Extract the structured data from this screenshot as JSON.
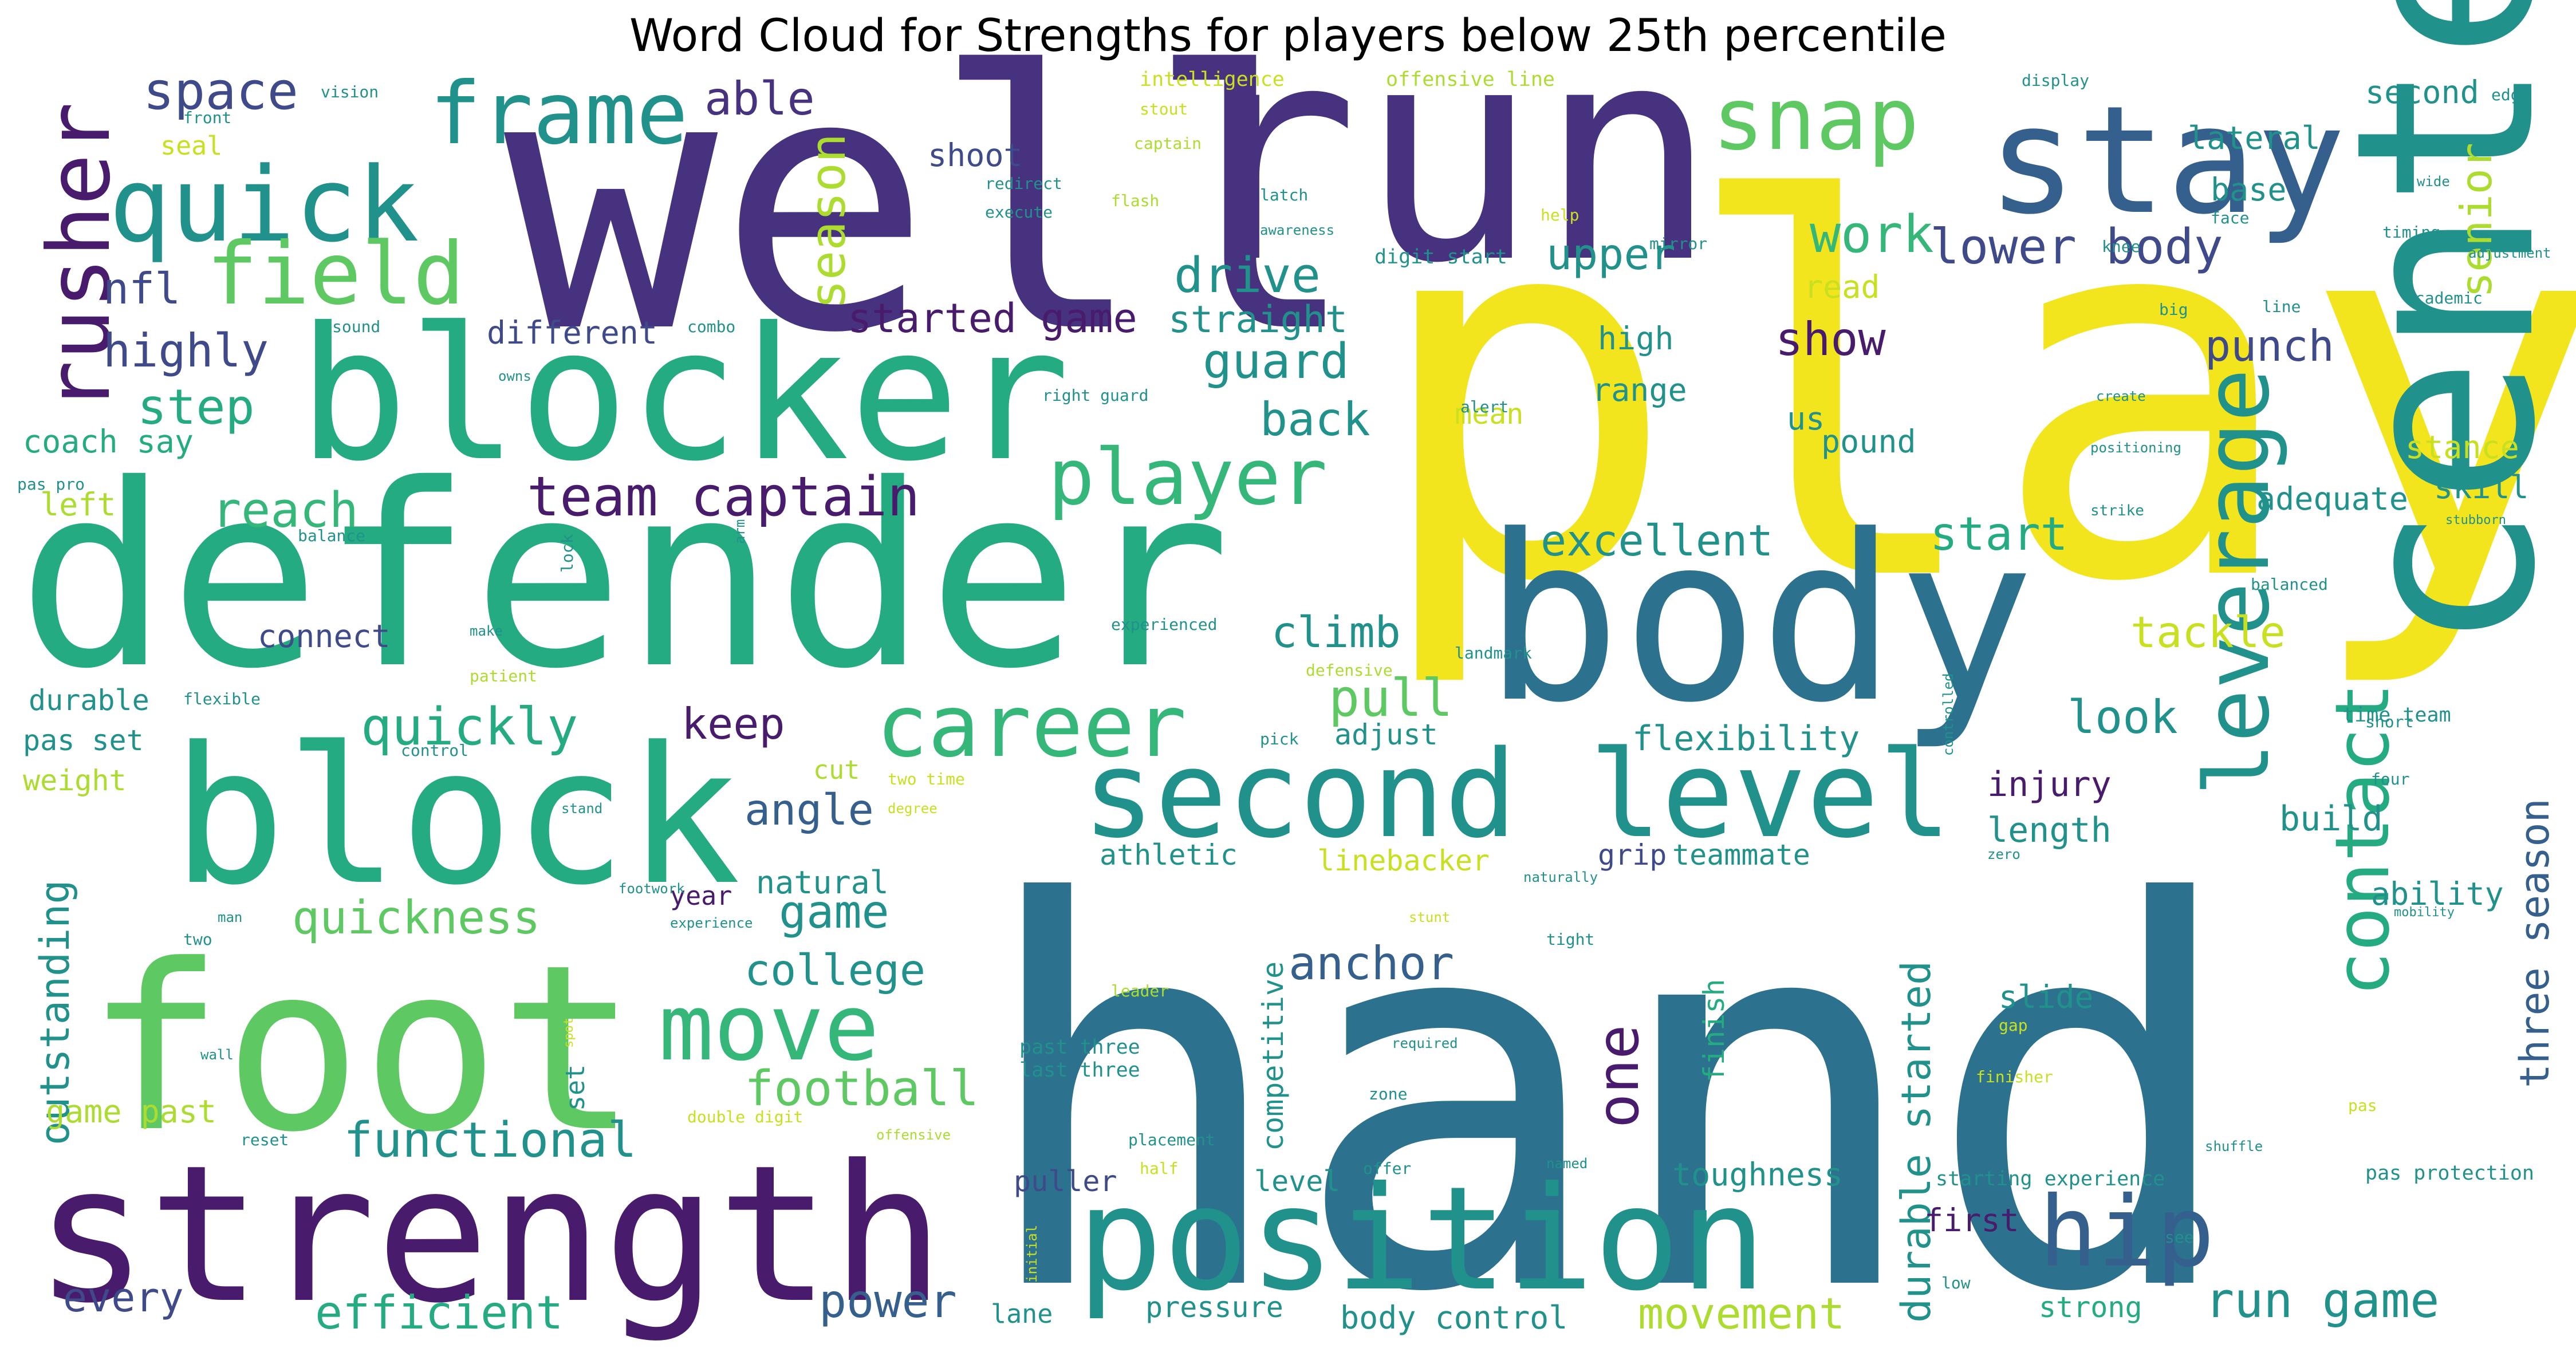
{
  "title": "Word Cloud for Strengths for players below 25th percentile",
  "palette": {
    "dark_purple": "#46327e",
    "deep_purple": "#481b6d",
    "indigo": "#3e4a89",
    "blue": "#355f8d",
    "teal_blue": "#2c728e",
    "teal": "#21918c",
    "green_teal": "#25ab82",
    "green": "#35b779",
    "light_green": "#5ec962",
    "yellow_green": "#addc30",
    "lime": "#c8e020",
    "yellow": "#f2e51d"
  },
  "words": [
    {
      "text": "play"
    },
    {
      "text": "hand"
    },
    {
      "text": "well"
    },
    {
      "text": "run"
    },
    {
      "text": "defender"
    },
    {
      "text": "body"
    },
    {
      "text": "center"
    },
    {
      "text": "blocker"
    },
    {
      "text": "block"
    },
    {
      "text": "foot"
    },
    {
      "text": "strength"
    },
    {
      "text": "position"
    },
    {
      "text": "stay"
    },
    {
      "text": "second level"
    },
    {
      "text": "quick"
    },
    {
      "text": "snap"
    },
    {
      "text": "frame"
    },
    {
      "text": "field"
    },
    {
      "text": "rusher"
    },
    {
      "text": "career"
    },
    {
      "text": "move"
    },
    {
      "text": "player"
    },
    {
      "text": "leverage"
    },
    {
      "text": "contact"
    },
    {
      "text": "hip"
    },
    {
      "text": "team captain"
    },
    {
      "text": "space"
    },
    {
      "text": "able"
    },
    {
      "text": "nfl"
    },
    {
      "text": "highly"
    },
    {
      "text": "step"
    },
    {
      "text": "season"
    },
    {
      "text": "work"
    },
    {
      "text": "lower body"
    },
    {
      "text": "upper"
    },
    {
      "text": "drive"
    },
    {
      "text": "started game"
    },
    {
      "text": "straight"
    },
    {
      "text": "guard"
    },
    {
      "text": "back"
    },
    {
      "text": "show"
    },
    {
      "text": "reach"
    },
    {
      "text": "excellent"
    },
    {
      "text": "start"
    },
    {
      "text": "quickly"
    },
    {
      "text": "pull"
    },
    {
      "text": "keep"
    },
    {
      "text": "angle"
    },
    {
      "text": "look"
    },
    {
      "text": "climb"
    },
    {
      "text": "connect"
    },
    {
      "text": "coach say"
    },
    {
      "text": "quickness"
    },
    {
      "text": "game"
    },
    {
      "text": "college"
    },
    {
      "text": "anchor"
    },
    {
      "text": "football"
    },
    {
      "text": "functional"
    },
    {
      "text": "efficient"
    },
    {
      "text": "power"
    },
    {
      "text": "movement"
    },
    {
      "text": "run game"
    },
    {
      "text": "tackle"
    },
    {
      "text": "punch"
    },
    {
      "text": "senior"
    },
    {
      "text": "three season"
    },
    {
      "text": "durable started"
    },
    {
      "text": "one"
    },
    {
      "text": "outstanding"
    },
    {
      "text": "game past"
    },
    {
      "text": "every"
    },
    {
      "text": "flexibility"
    },
    {
      "text": "injury"
    },
    {
      "text": "length"
    },
    {
      "text": "build"
    },
    {
      "text": "ability"
    },
    {
      "text": "stance"
    },
    {
      "text": "skill"
    },
    {
      "text": "adequate"
    },
    {
      "text": "lateral"
    },
    {
      "text": "second"
    },
    {
      "text": "base"
    },
    {
      "text": "read"
    },
    {
      "text": "high"
    },
    {
      "text": "range"
    },
    {
      "text": "pound"
    },
    {
      "text": "us"
    },
    {
      "text": "mean"
    },
    {
      "text": "different"
    },
    {
      "text": "shoot"
    },
    {
      "text": "seal"
    },
    {
      "text": "left"
    },
    {
      "text": "durable"
    },
    {
      "text": "pas set"
    },
    {
      "text": "weight"
    },
    {
      "text": "adjust"
    },
    {
      "text": "cut"
    },
    {
      "text": "natural"
    },
    {
      "text": "year"
    },
    {
      "text": "athletic"
    },
    {
      "text": "linebacker"
    },
    {
      "text": "grip"
    },
    {
      "text": "teammate"
    },
    {
      "text": "slide"
    },
    {
      "text": "competitive"
    },
    {
      "text": "finish"
    },
    {
      "text": "puller"
    },
    {
      "text": "level"
    },
    {
      "text": "toughness"
    },
    {
      "text": "first"
    },
    {
      "text": "pressure"
    },
    {
      "text": "body control"
    },
    {
      "text": "strong"
    },
    {
      "text": "lane"
    },
    {
      "text": "set"
    },
    {
      "text": "starting experience"
    },
    {
      "text": "pas protection"
    },
    {
      "text": "digit start"
    },
    {
      "text": "time team"
    },
    {
      "text": "past three"
    },
    {
      "text": "last three"
    },
    {
      "text": "intelligence"
    },
    {
      "text": "offensive line"
    },
    {
      "text": "stout"
    },
    {
      "text": "captain"
    },
    {
      "text": "redirect"
    },
    {
      "text": "execute"
    },
    {
      "text": "flash"
    },
    {
      "text": "latch"
    },
    {
      "text": "awareness"
    },
    {
      "text": "vision"
    },
    {
      "text": "front"
    },
    {
      "text": "display"
    },
    {
      "text": "edge"
    },
    {
      "text": "face"
    },
    {
      "text": "help"
    },
    {
      "text": "mirror"
    },
    {
      "text": "knee"
    },
    {
      "text": "line"
    },
    {
      "text": "academic"
    },
    {
      "text": "big"
    },
    {
      "text": "timing"
    },
    {
      "text": "wide"
    },
    {
      "text": "adjustment"
    },
    {
      "text": "create"
    },
    {
      "text": "positioning"
    },
    {
      "text": "strike"
    },
    {
      "text": "stubborn"
    },
    {
      "text": "balanced"
    },
    {
      "text": "right guard"
    },
    {
      "text": "alert"
    },
    {
      "text": "sound"
    },
    {
      "text": "combo"
    },
    {
      "text": "owns"
    },
    {
      "text": "pas pro"
    },
    {
      "text": "balance"
    },
    {
      "text": "lock"
    },
    {
      "text": "arm"
    },
    {
      "text": "make"
    },
    {
      "text": "patient"
    },
    {
      "text": "experienced"
    },
    {
      "text": "defensive"
    },
    {
      "text": "landmark"
    },
    {
      "text": "flexible"
    },
    {
      "text": "control"
    },
    {
      "text": "stand"
    },
    {
      "text": "footwork"
    },
    {
      "text": "degree"
    },
    {
      "text": "two time"
    },
    {
      "text": "two"
    },
    {
      "text": "man"
    },
    {
      "text": "experience"
    },
    {
      "text": "stunt"
    },
    {
      "text": "tight"
    },
    {
      "text": "naturally"
    },
    {
      "text": "leader"
    },
    {
      "text": "required"
    },
    {
      "text": "gap"
    },
    {
      "text": "zone"
    },
    {
      "text": "placement"
    },
    {
      "text": "half"
    },
    {
      "text": "offer"
    },
    {
      "text": "named"
    },
    {
      "text": "initial"
    },
    {
      "text": "see"
    },
    {
      "text": "low"
    },
    {
      "text": "short"
    },
    {
      "text": "four"
    },
    {
      "text": "pick"
    },
    {
      "text": "controlled"
    },
    {
      "text": "zero"
    },
    {
      "text": "mobility"
    },
    {
      "text": "shuffle"
    },
    {
      "text": "finisher"
    },
    {
      "text": "pas"
    },
    {
      "text": "spot"
    },
    {
      "text": "wall"
    },
    {
      "text": "reset"
    },
    {
      "text": "double digit"
    },
    {
      "text": "offensive"
    }
  ]
}
